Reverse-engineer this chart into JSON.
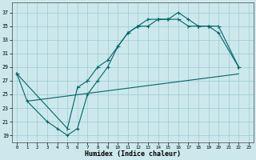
{
  "xlabel": "Humidex (Indice chaleur)",
  "bg_color": "#cce8ec",
  "grid_color": "#99ccd4",
  "line_color": "#006666",
  "xlim": [
    -0.5,
    23.5
  ],
  "ylim": [
    18,
    38.5
  ],
  "xticks": [
    0,
    1,
    2,
    3,
    4,
    5,
    6,
    7,
    8,
    9,
    10,
    11,
    12,
    13,
    14,
    15,
    16,
    17,
    18,
    19,
    20,
    21,
    22,
    23
  ],
  "yticks": [
    19,
    21,
    23,
    25,
    27,
    29,
    31,
    33,
    35,
    37
  ],
  "c1x": [
    0,
    1,
    3,
    4,
    5,
    6,
    7,
    8,
    9,
    10,
    11,
    12,
    13,
    14,
    15,
    16,
    17,
    18,
    19,
    20,
    22
  ],
  "c1y": [
    28,
    24,
    21,
    20,
    19,
    20,
    25,
    27,
    29,
    32,
    34,
    35,
    35,
    36,
    36,
    37,
    36,
    35,
    35,
    34,
    29
  ],
  "c2x": [
    0,
    5,
    6,
    7,
    8,
    9,
    10,
    11,
    12,
    13,
    14,
    15,
    16,
    17,
    18,
    19,
    20,
    22
  ],
  "c2y": [
    28,
    20,
    26,
    27,
    29,
    30,
    32,
    34,
    35,
    36,
    36,
    36,
    36,
    35,
    35,
    35,
    35,
    29
  ],
  "c3x": [
    1,
    22
  ],
  "c3y": [
    24,
    28
  ]
}
